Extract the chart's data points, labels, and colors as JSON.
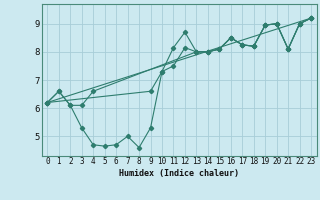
{
  "xlabel": "Humidex (Indice chaleur)",
  "ylabel": "",
  "xlim": [
    -0.5,
    23.5
  ],
  "ylim": [
    4.3,
    9.7
  ],
  "xticks": [
    0,
    1,
    2,
    3,
    4,
    5,
    6,
    7,
    8,
    9,
    10,
    11,
    12,
    13,
    14,
    15,
    16,
    17,
    18,
    19,
    20,
    21,
    22,
    23
  ],
  "yticks": [
    5,
    6,
    7,
    8,
    9
  ],
  "bg_color": "#cce9f0",
  "line_color": "#2e7d6e",
  "grid_color": "#a8cdd8",
  "lines": [
    {
      "x": [
        0,
        1,
        2,
        3,
        4,
        5,
        6,
        7,
        8,
        9,
        10,
        11,
        12,
        13,
        14,
        15,
        16,
        17,
        18,
        19,
        20,
        21,
        22,
        23
      ],
      "y": [
        6.2,
        6.6,
        6.1,
        5.3,
        4.7,
        4.65,
        4.7,
        5.0,
        4.6,
        5.3,
        7.3,
        8.15,
        8.7,
        8.0,
        8.0,
        8.1,
        8.5,
        8.25,
        8.2,
        8.95,
        9.0,
        8.1,
        9.0,
        9.2
      ]
    },
    {
      "x": [
        0,
        1,
        2,
        3,
        4,
        13,
        14,
        15,
        16,
        17,
        18,
        19,
        20,
        21,
        22,
        23
      ],
      "y": [
        6.2,
        6.6,
        6.1,
        6.1,
        6.6,
        8.0,
        8.0,
        8.1,
        8.5,
        8.25,
        8.2,
        8.95,
        9.0,
        8.1,
        9.0,
        9.2
      ]
    },
    {
      "x": [
        0,
        9,
        10,
        11,
        12,
        13,
        14,
        15,
        16,
        17,
        18,
        19,
        20,
        21,
        22,
        23
      ],
      "y": [
        6.2,
        6.6,
        7.3,
        7.5,
        8.15,
        8.0,
        8.0,
        8.1,
        8.5,
        8.25,
        8.2,
        8.95,
        9.0,
        8.1,
        9.0,
        9.2
      ]
    },
    {
      "x": [
        0,
        23
      ],
      "y": [
        6.2,
        9.2
      ]
    }
  ]
}
